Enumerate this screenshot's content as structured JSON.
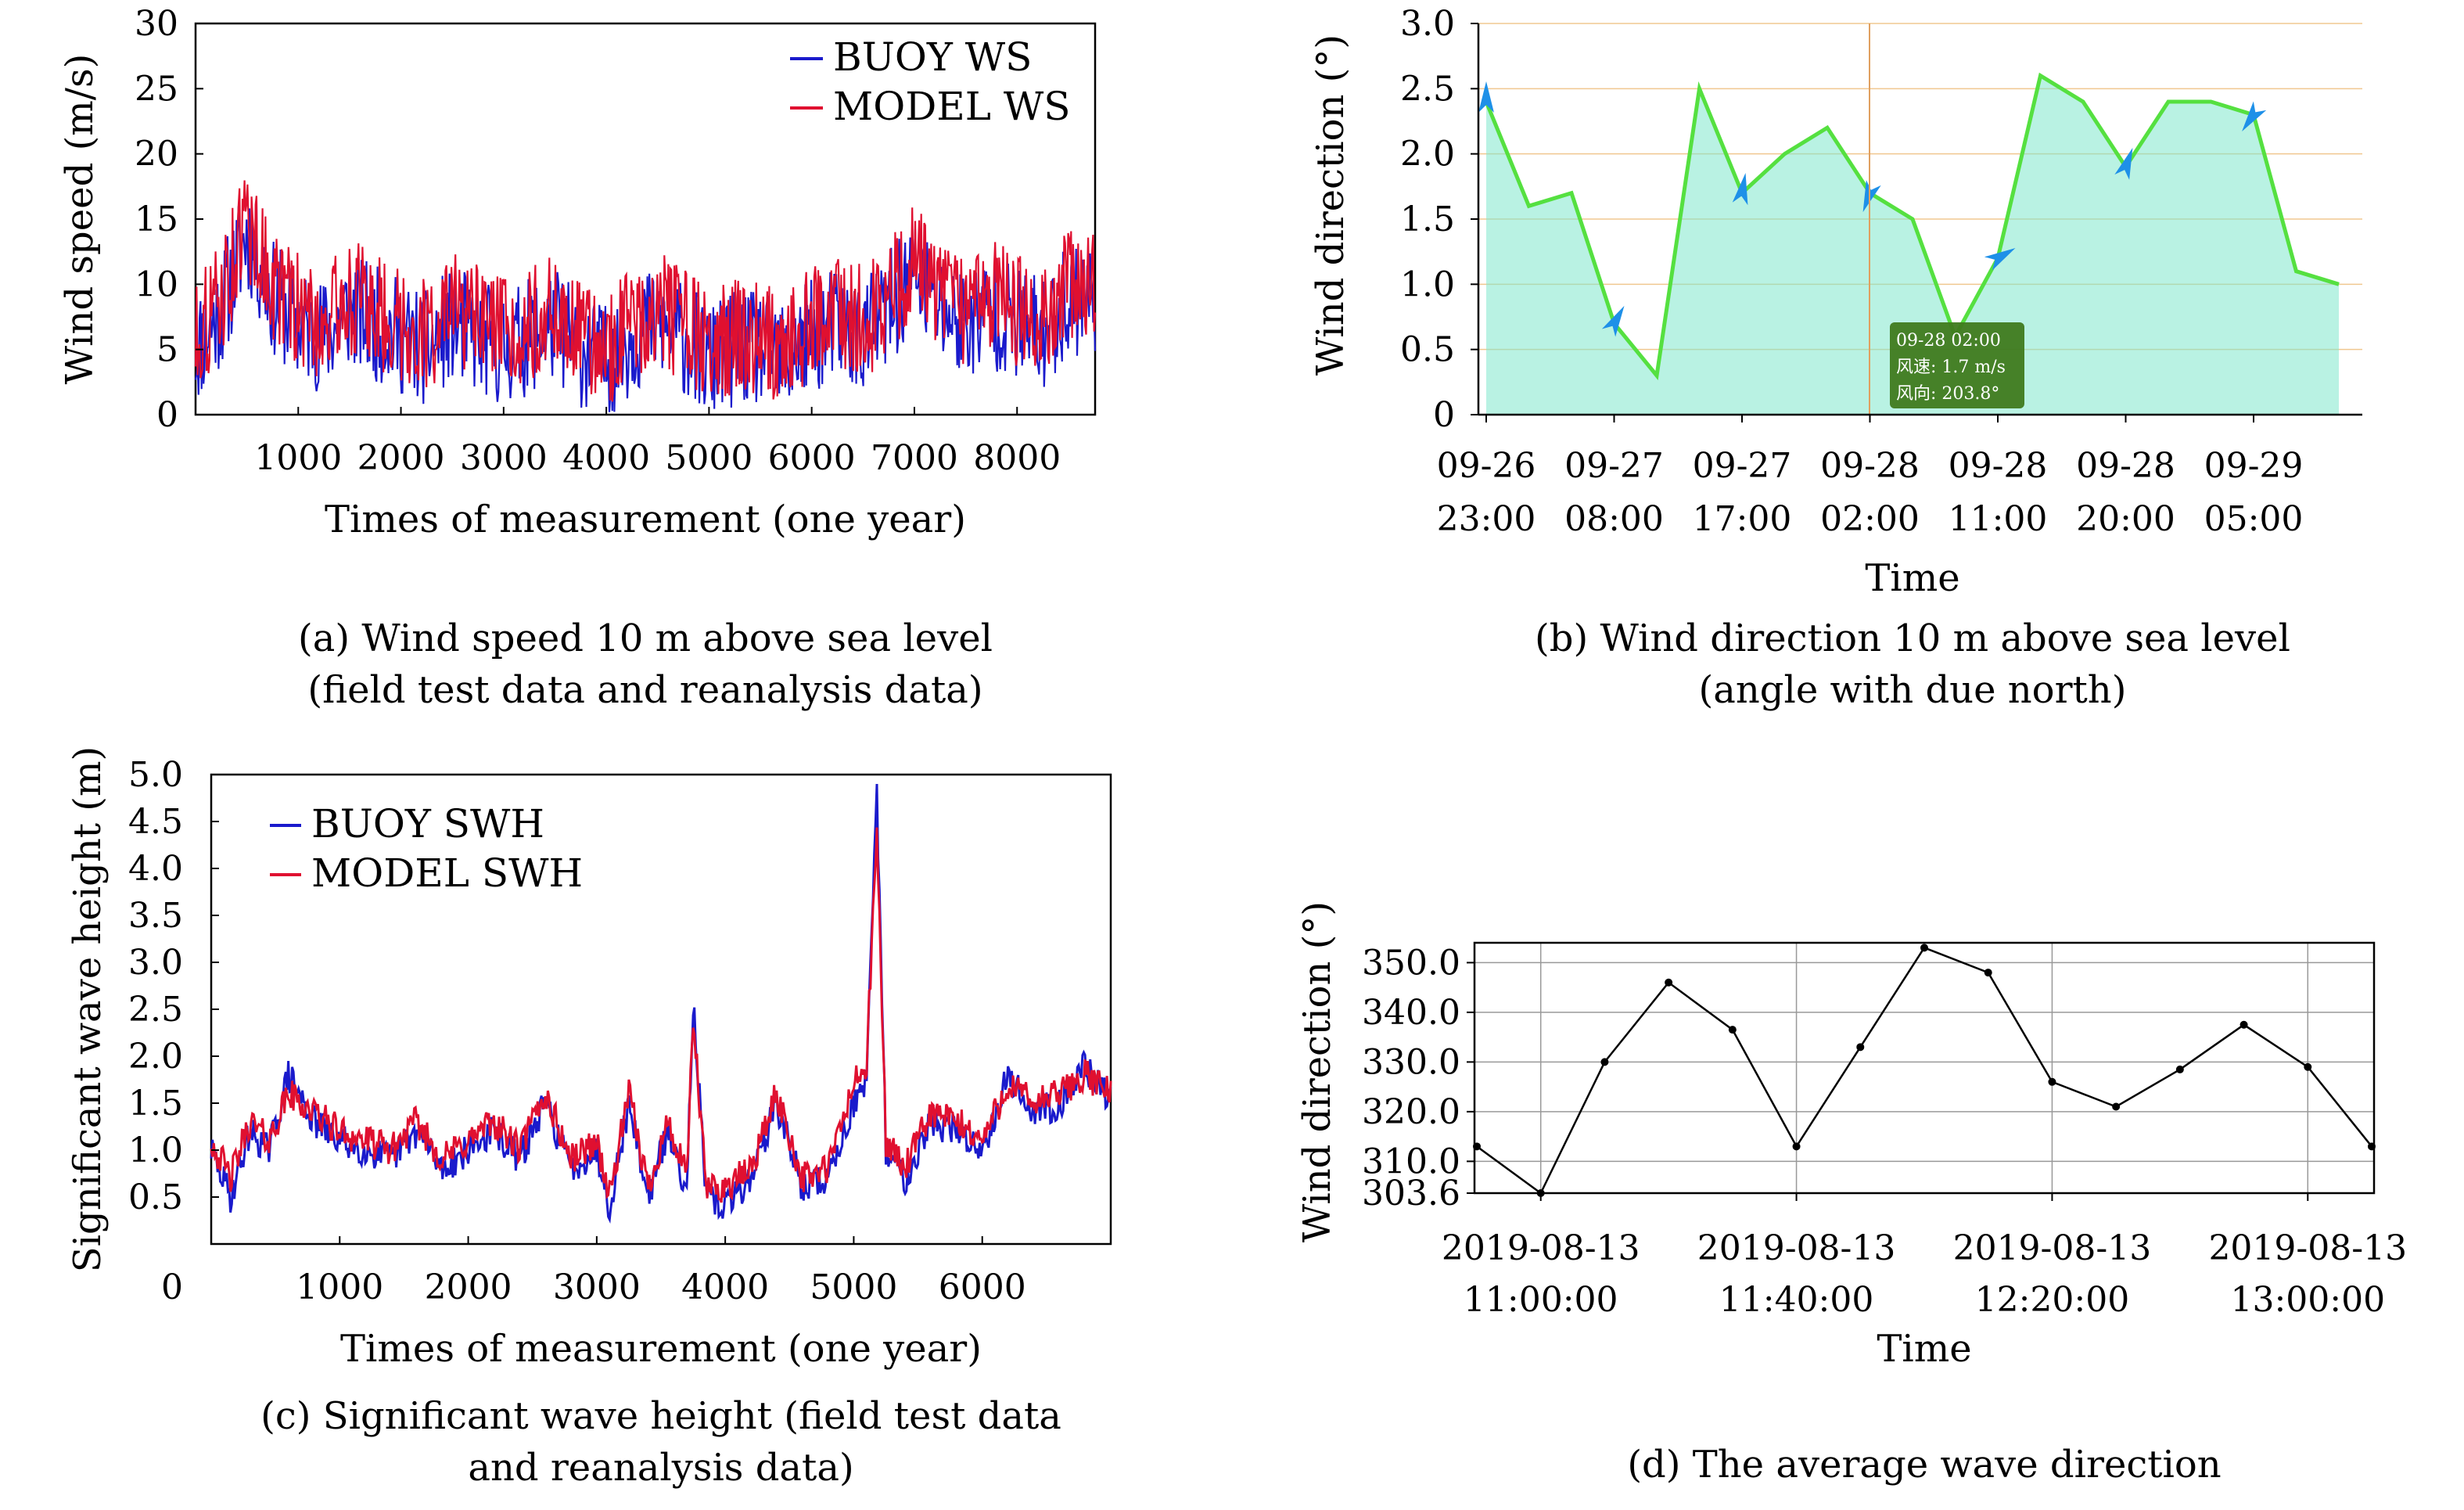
{
  "panels": [
    {
      "id": "a",
      "caption_line1": "(a) Wind speed 10 m above sea level",
      "caption_line2": "(field test data and reanalysis data)",
      "chart_data": {
        "type": "line",
        "xlabel": "Times of measurement (one year)",
        "ylabel": "Wind speed (m/s)",
        "xlim": [
          0,
          8760
        ],
        "ylim": [
          0,
          30
        ],
        "xticks": [
          1000,
          2000,
          3000,
          4000,
          5000,
          6000,
          7000,
          8000
        ],
        "yticks": [
          0,
          5,
          10,
          15,
          20,
          25,
          30
        ],
        "legend_position": "top-right",
        "series": [
          {
            "name": "BUOY WS",
            "color": "#1a1acc",
            "x": [
              0,
              250,
              500,
              750,
              1000,
              1250,
              1500,
              1750,
              2000,
              2250,
              2500,
              2750,
              3000,
              3250,
              3500,
              3750,
              4000,
              4250,
              4500,
              4750,
              5000,
              5250,
              5500,
              5750,
              6000,
              6250,
              6500,
              6750,
              7000,
              7250,
              7500,
              7750,
              8000,
              8250,
              8500,
              8760
            ],
            "y": [
              5,
              8,
              14,
              9,
              7,
              6,
              8,
              7,
              6,
              5,
              7,
              6,
              5,
              6,
              7,
              5,
              4,
              6,
              7,
              6,
              4,
              5,
              5,
              4,
              6,
              7,
              6,
              8,
              11,
              8,
              7,
              8,
              7,
              6,
              9,
              9
            ]
          },
          {
            "name": "MODEL WS",
            "color": "#e01030",
            "x": [
              0,
              250,
              500,
              750,
              1000,
              1250,
              1500,
              1750,
              2000,
              2250,
              2500,
              2750,
              3000,
              3250,
              3500,
              3750,
              4000,
              4250,
              4500,
              4750,
              5000,
              5250,
              5500,
              5750,
              6000,
              6250,
              6500,
              6750,
              7000,
              7250,
              7500,
              7750,
              8000,
              8250,
              8500,
              8760
            ],
            "y": [
              6,
              9,
              15,
              10,
              8,
              7,
              9,
              8,
              7,
              6,
              8,
              7,
              6,
              7,
              8,
              6,
              5,
              7,
              8,
              7,
              5,
              6,
              6,
              5,
              7,
              8,
              7,
              9,
              12,
              9,
              8,
              9,
              8,
              7,
              10,
              10
            ]
          }
        ]
      }
    },
    {
      "id": "b",
      "caption_line1": "(b) Wind direction 10 m above sea level",
      "caption_line2": "(angle with due north)",
      "tooltip": {
        "time": "09-28 02:00",
        "speed": "风速: 1.7 m/s",
        "direction": "风向: 203.8°"
      },
      "chart_data": {
        "type": "area",
        "xlabel": "Time",
        "ylabel": "Wind direction (°)",
        "ylim": [
          0,
          3.0
        ],
        "yticks": [
          "0",
          "0.5",
          "1.0",
          "1.5",
          "2.0",
          "2.5",
          "3.0"
        ],
        "xticks": [
          {
            "i": 0,
            "line1": "09-26",
            "line2": "23:00"
          },
          {
            "i": 3,
            "line1": "09-27",
            "line2": "08:00"
          },
          {
            "i": 6,
            "line1": "09-27",
            "line2": "17:00"
          },
          {
            "i": 9,
            "line1": "09-28",
            "line2": "02:00"
          },
          {
            "i": 12,
            "line1": "09-28",
            "line2": "11:00"
          },
          {
            "i": 15,
            "line1": "09-28",
            "line2": "20:00"
          },
          {
            "i": 18,
            "line1": "09-29",
            "line2": "05:00"
          }
        ],
        "n_points": 21,
        "values": [
          2.4,
          1.6,
          1.7,
          0.7,
          0.3,
          2.5,
          1.7,
          2.0,
          2.2,
          1.7,
          1.5,
          0.6,
          1.2,
          2.6,
          2.4,
          1.9,
          2.4,
          2.4,
          2.3,
          1.1,
          1.0
        ],
        "arrow_indices": [
          0,
          3,
          6,
          9,
          12,
          15,
          18
        ],
        "line_color": "#55e040",
        "arrow_color": "#1e90e8",
        "grid": true
      }
    },
    {
      "id": "c",
      "caption_line1": "(c) Significant wave height (field test data",
      "caption_line2": "and reanalysis data)",
      "chart_data": {
        "type": "line",
        "xlabel": "Times of measurement (one year)",
        "ylabel": "Significant wave height (m)",
        "xlim": [
          0,
          7000
        ],
        "ylim": [
          0,
          5.0
        ],
        "xticks": [
          "0",
          "1000",
          "2000",
          "3000",
          "4000",
          "5000",
          "6000"
        ],
        "yticks": [
          "0.5",
          "1.0",
          "1.5",
          "2.0",
          "2.5",
          "3.0",
          "3.5",
          "4.0",
          "4.5",
          "5.0"
        ],
        "legend_position": "top-left",
        "series": [
          {
            "name": "BUOY SWH",
            "color": "#1a1acc",
            "x": [
              0,
              150,
              300,
              450,
              600,
              800,
              1000,
              1200,
              1400,
              1600,
              1800,
              2000,
              2200,
              2400,
              2600,
              2800,
              3000,
              3100,
              3250,
              3400,
              3550,
              3700,
              3750,
              3850,
              4000,
              4200,
              4400,
              4600,
              4800,
              5000,
              5100,
              5180,
              5250,
              5400,
              5600,
              5800,
              6000,
              6200,
              6400,
              6600,
              6800,
              7000
            ],
            "y": [
              1.0,
              0.5,
              1.2,
              1.0,
              1.8,
              1.3,
              1.1,
              1.0,
              0.9,
              1.2,
              0.8,
              1.0,
              1.2,
              0.9,
              1.5,
              0.8,
              1.0,
              0.4,
              1.5,
              0.5,
              1.2,
              0.6,
              2.6,
              0.5,
              0.4,
              0.7,
              1.5,
              0.6,
              0.7,
              1.5,
              1.7,
              4.8,
              1.0,
              0.7,
              1.3,
              1.2,
              1.0,
              1.8,
              1.4,
              1.5,
              1.9,
              1.5
            ]
          },
          {
            "name": "MODEL SWH",
            "color": "#e01030",
            "x": [
              0,
              150,
              300,
              450,
              600,
              800,
              1000,
              1200,
              1400,
              1600,
              1800,
              2000,
              2200,
              2400,
              2600,
              2800,
              3000,
              3100,
              3250,
              3400,
              3550,
              3700,
              3750,
              3850,
              4000,
              4200,
              4400,
              4600,
              4800,
              5000,
              5100,
              5180,
              5250,
              5400,
              5600,
              5800,
              6000,
              6200,
              6400,
              6600,
              6800,
              7000
            ],
            "y": [
              1.1,
              0.7,
              1.3,
              1.1,
              1.6,
              1.4,
              1.2,
              1.1,
              1.0,
              1.3,
              0.9,
              1.1,
              1.3,
              1.0,
              1.6,
              0.9,
              1.1,
              0.5,
              1.6,
              0.6,
              1.3,
              0.7,
              2.4,
              0.6,
              0.6,
              0.8,
              1.6,
              0.7,
              0.8,
              1.7,
              1.9,
              4.4,
              1.1,
              0.8,
              1.4,
              1.3,
              1.1,
              1.7,
              1.5,
              1.6,
              1.8,
              1.6
            ]
          }
        ]
      }
    },
    {
      "id": "d",
      "caption_line1": "(d) The average wave direction",
      "chart_data": {
        "type": "line",
        "xlabel": "Time",
        "ylabel": "Wind direction (°)",
        "ylim": [
          303.6,
          354
        ],
        "yticks": [
          "303.6",
          "310.0",
          "320.0",
          "330.0",
          "340.0",
          "350.0"
        ],
        "xticks": [
          {
            "i": 1,
            "line1": "2019-08-13",
            "line2": "11:00:00"
          },
          {
            "i": 5,
            "line1": "2019-08-13",
            "line2": "11:40:00"
          },
          {
            "i": 9,
            "line1": "2019-08-13",
            "line2": "12:20:00"
          },
          {
            "i": 13,
            "line1": "2019-08-13",
            "line2": "13:00:00"
          }
        ],
        "n_points": 15,
        "values": [
          313,
          303.6,
          330,
          346,
          336.5,
          313,
          333,
          353,
          348,
          326,
          321,
          328.5,
          337.5,
          329,
          313
        ],
        "line_color": "#000000",
        "grid": true
      }
    }
  ]
}
